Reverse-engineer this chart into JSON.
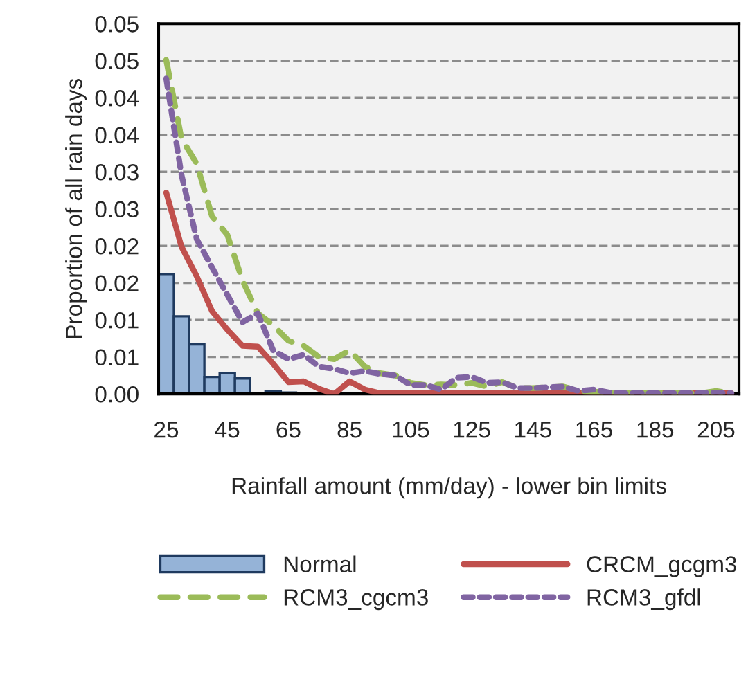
{
  "chart_data": {
    "type": "bar",
    "xlabel": "Rainfall amount (mm/day) - lower bin limits",
    "ylabel": "Proportion of all rain days",
    "categories": [
      "25",
      null,
      null,
      null,
      "45",
      null,
      null,
      null,
      "65",
      null,
      null,
      null,
      "85",
      null,
      null,
      null,
      "105",
      null,
      null,
      null,
      "125",
      null,
      null,
      null,
      "145",
      null,
      null,
      null,
      "165",
      null,
      null,
      null,
      "185",
      null,
      null,
      null,
      "205",
      null
    ],
    "ylim": [
      0,
      0.05
    ],
    "yticks": [
      {
        "value": 0,
        "label": "0.00"
      },
      {
        "value": 0.005,
        "label": "0.01"
      },
      {
        "value": 0.01,
        "label": "0.01"
      },
      {
        "value": 0.015,
        "label": "0.02"
      },
      {
        "value": 0.02,
        "label": "0.02"
      },
      {
        "value": 0.025,
        "label": "0.03"
      },
      {
        "value": 0.03,
        "label": "0.03"
      },
      {
        "value": 0.035,
        "label": "0.04"
      },
      {
        "value": 0.04,
        "label": "0.04"
      },
      {
        "value": 0.045,
        "label": "0.05"
      },
      {
        "value": 0.05,
        "label": "0.05"
      }
    ],
    "grid": "y",
    "legend": "bottom",
    "series": [
      {
        "name": "Normal",
        "color": "#95b3d7",
        "values": [
          0.0162,
          0.0105,
          0.0067,
          0.0023,
          0.0028,
          0.0021,
          0,
          0.0004,
          0.0002,
          0,
          0,
          0,
          0,
          0,
          0,
          0,
          0,
          0,
          0,
          0,
          0,
          0,
          0,
          0,
          0,
          0,
          0,
          0,
          0,
          0,
          0,
          0,
          0,
          0,
          0,
          0,
          0,
          0
        ]
      },
      {
        "name": "CRCM_gcgm3",
        "type": "line",
        "line_style": "solid",
        "color": "#c0504d",
        "values": [
          0.0272,
          0.0199,
          0.0159,
          0.0112,
          0.0087,
          0.0065,
          0.0064,
          0.0041,
          0.0016,
          0.0017,
          0.0007,
          0,
          0.0017,
          0.0006,
          0.0001,
          0.0001,
          0.0001,
          0.0001,
          0.0001,
          0.0001,
          0.0001,
          0.0001,
          0.0001,
          0.0001,
          0.0001,
          0.0001,
          0.0001,
          0.0001,
          0.0001,
          0.0001,
          0.0001,
          0.0001,
          0.0001,
          0.0001,
          0.0001,
          0.0001,
          0.0001,
          0.0001
        ]
      },
      {
        "name": "RCM3_cgcm3",
        "type": "line",
        "line_style": "dashed",
        "color": "#9bbb59",
        "values": [
          0.0451,
          0.0345,
          0.0311,
          0.024,
          0.0215,
          0.0153,
          0.0109,
          0.0093,
          0.0072,
          0.0065,
          0.005,
          0.0047,
          0.0059,
          0.0037,
          0.0028,
          0.0025,
          0.0015,
          0.0012,
          0.0013,
          0.0012,
          0.0015,
          0.001,
          0.0016,
          0.0008,
          0.0008,
          0.0009,
          0.001,
          0.0004,
          0.0003,
          0.0002,
          0.0001,
          0.0001,
          0.0001,
          0.0001,
          0.0001,
          0.0001,
          0.0004,
          0.0001
        ]
      },
      {
        "name": "RCM3_gfdl",
        "type": "line",
        "line_style": "dotted",
        "color": "#8064a2",
        "values": [
          0.0426,
          0.0296,
          0.0209,
          0.0171,
          0.0134,
          0.0097,
          0.0109,
          0.0059,
          0.0047,
          0.0053,
          0.0037,
          0.0034,
          0.0028,
          0.0031,
          0.0027,
          0.0025,
          0.0012,
          0.0012,
          0.0006,
          0.0022,
          0.0023,
          0.0015,
          0.0016,
          0.0008,
          0.0008,
          0.0009,
          0.001,
          0.0004,
          0.0006,
          0.0002,
          0.0001,
          0.0001,
          0.0001,
          0.0001,
          0.0001,
          0.0001,
          0.0002,
          0.0001
        ]
      }
    ]
  }
}
